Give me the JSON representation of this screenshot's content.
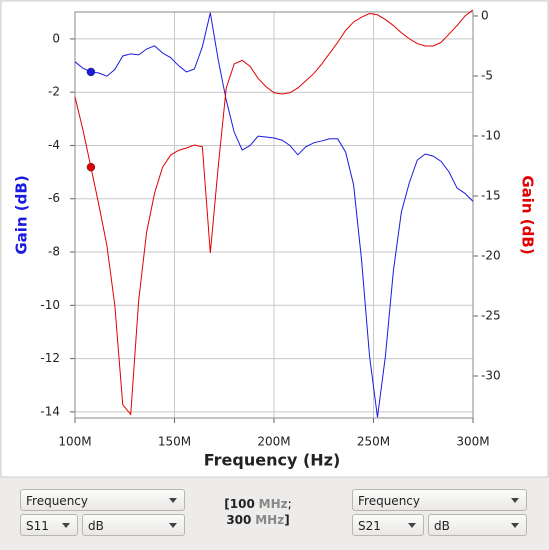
{
  "chart_data": {
    "type": "line",
    "x_label": "Frequency (Hz)",
    "y_label": "Gain (dB)",
    "y2_label": "Gain (dB)",
    "x": [
      100000000,
      104000000,
      108000000,
      112000000,
      116000000,
      120000000,
      124000000,
      128000000,
      132000000,
      136000000,
      140000000,
      144000000,
      148000000,
      152000000,
      156000000,
      160000000,
      164000000,
      168000000,
      172000000,
      176000000,
      180000000,
      184000000,
      188000000,
      192000000,
      196000000,
      200000000,
      204000000,
      208000000,
      212000000,
      216000000,
      220000000,
      224000000,
      228000000,
      232000000,
      236000000,
      240000000,
      244000000,
      248000000,
      252000000,
      256000000,
      260000000,
      264000000,
      268000000,
      272000000,
      276000000,
      280000000,
      284000000,
      288000000,
      292000000,
      296000000,
      300000000
    ],
    "series": [
      {
        "name": "S11",
        "color": "#1a1ae0",
        "axis": "y",
        "values": [
          -0.86,
          -1.1,
          -1.24,
          -1.28,
          -1.4,
          -1.15,
          -0.64,
          -0.56,
          -0.6,
          -0.38,
          -0.26,
          -0.53,
          -0.7,
          -1.0,
          -1.24,
          -1.13,
          -0.3,
          0.98,
          -0.8,
          -2.3,
          -3.5,
          -4.17,
          -4.0,
          -3.65,
          -3.68,
          -3.72,
          -3.8,
          -4.0,
          -4.35,
          -4.05,
          -3.9,
          -3.83,
          -3.75,
          -3.75,
          -4.25,
          -5.48,
          -8.3,
          -11.9,
          -14.2,
          -11.9,
          -8.7,
          -6.5,
          -5.4,
          -4.55,
          -4.32,
          -4.4,
          -4.6,
          -5.0,
          -5.6,
          -5.8,
          -6.1
        ]
      },
      {
        "name": "S21",
        "color": "#e00000",
        "axis": "y2",
        "values": [
          -6.75,
          -9.5,
          -12.6,
          -15.75,
          -19.1,
          -24.1,
          -32.4,
          -33.2,
          -23.7,
          -18,
          -14.75,
          -12.6,
          -11.6,
          -11.2,
          -11.0,
          -10.75,
          -10.9,
          -19.75,
          -12.5,
          -6,
          -4,
          -3.7,
          -4.2,
          -5.2,
          -5.9,
          -6.4,
          -6.5,
          -6.4,
          -6.0,
          -5.4,
          -4.8,
          -4.0,
          -3.1,
          -2.2,
          -1.2,
          -0.5,
          -0.1,
          0.2,
          0.1,
          -0.3,
          -0.8,
          -1.4,
          -1.9,
          -2.3,
          -2.5,
          -2.5,
          -2.2,
          -1.5,
          -0.8,
          0,
          0.5
        ]
      }
    ],
    "cursor_x": 108000000,
    "xlim": [
      100000000,
      300000000
    ],
    "xticks": [
      {
        "value": 100000000,
        "label": "100M"
      },
      {
        "value": 150000000,
        "label": "150M"
      },
      {
        "value": 200000000,
        "label": "200M"
      },
      {
        "value": 250000000,
        "label": "250M"
      },
      {
        "value": 300000000,
        "label": "300M"
      }
    ],
    "ylim": [
      1.01,
      -14.23
    ],
    "yticks": [
      0,
      -2,
      -4,
      -6,
      -8,
      -10,
      -12,
      -14
    ],
    "y2lim": [
      0.33,
      -33.5
    ],
    "y2ticks": [
      0,
      -5,
      -10,
      -15,
      -20,
      -25,
      -30
    ],
    "grid": true
  },
  "controls": {
    "left": {
      "domain": "Frequency",
      "format": "dB"
    },
    "right": {
      "domain": "Frequency",
      "format": "dB"
    },
    "range": {
      "open": "[",
      "start": "100",
      "start_unit": "MHz",
      "sep": ";",
      "end": "300",
      "end_unit": "MHz",
      "close": "]"
    }
  }
}
